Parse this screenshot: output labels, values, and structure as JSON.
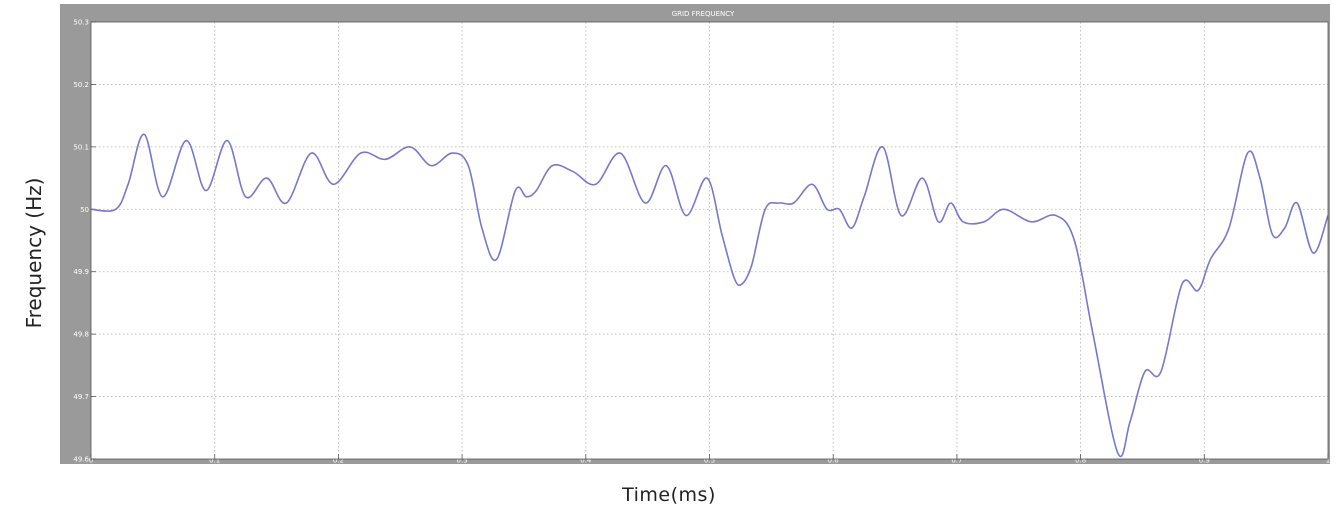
{
  "chart_data": {
    "type": "line",
    "title": "GRID FREQUENCY",
    "xlabel": "Time(ms)",
    "ylabel": "Frequency (Hz)",
    "xlim": [
      0,
      1
    ],
    "ylim": [
      49.6,
      50.3
    ],
    "xticks": [
      0,
      0.1,
      0.2,
      0.3,
      0.4,
      0.5,
      0.6,
      0.7,
      0.8,
      0.9,
      1
    ],
    "xtick_labels": [
      "0",
      "0.1",
      "0.2",
      "0.3",
      "0.4",
      "0.5",
      "0.6",
      "0.7",
      "0.8",
      "0.9",
      "1"
    ],
    "yticks": [
      49.6,
      49.7,
      49.8,
      49.9,
      50,
      50.1,
      50.2,
      50.3
    ],
    "ytick_labels": [
      "49.6",
      "49.7",
      "49.8",
      "49.9",
      "50",
      "50.1",
      "50.2",
      "50.3"
    ],
    "grid": true,
    "line_color": "#7777cc",
    "series": [
      {
        "x": [
          0,
          0.02,
          0.03,
          0.043,
          0.058,
          0.077,
          0.093,
          0.11,
          0.125,
          0.142,
          0.158,
          0.178,
          0.196,
          0.218,
          0.238,
          0.258,
          0.275,
          0.292,
          0.305,
          0.316,
          0.328,
          0.343,
          0.352,
          0.36,
          0.373,
          0.39,
          0.408,
          0.428,
          0.448,
          0.465,
          0.481,
          0.498,
          0.51,
          0.52,
          0.526,
          0.534,
          0.545,
          0.556,
          0.568,
          0.583,
          0.595,
          0.605,
          0.615,
          0.625,
          0.64,
          0.655,
          0.672,
          0.685,
          0.695,
          0.705,
          0.722,
          0.738,
          0.76,
          0.78,
          0.795,
          0.81,
          0.83,
          0.84,
          0.852,
          0.865,
          0.882,
          0.895,
          0.905,
          0.92,
          0.935,
          0.945,
          0.955,
          0.965,
          0.975,
          0.988,
          1.0
        ],
        "y": [
          50.0,
          50.0,
          50.04,
          50.12,
          50.02,
          50.11,
          50.03,
          50.11,
          50.02,
          50.05,
          50.01,
          50.09,
          50.04,
          50.09,
          50.08,
          50.1,
          50.07,
          50.09,
          50.07,
          49.97,
          49.92,
          50.03,
          50.02,
          50.03,
          50.07,
          50.06,
          50.04,
          50.09,
          50.01,
          50.07,
          49.99,
          50.05,
          49.96,
          49.89,
          49.88,
          49.91,
          50.0,
          50.01,
          50.01,
          50.04,
          50.0,
          50.0,
          49.97,
          50.02,
          50.1,
          49.99,
          50.05,
          49.98,
          50.01,
          49.98,
          49.98,
          50.0,
          49.98,
          49.99,
          49.95,
          49.8,
          49.61,
          49.66,
          49.74,
          49.74,
          49.88,
          49.87,
          49.92,
          49.97,
          50.09,
          50.05,
          49.96,
          49.97,
          50.01,
          49.93,
          49.99
        ]
      }
    ]
  }
}
